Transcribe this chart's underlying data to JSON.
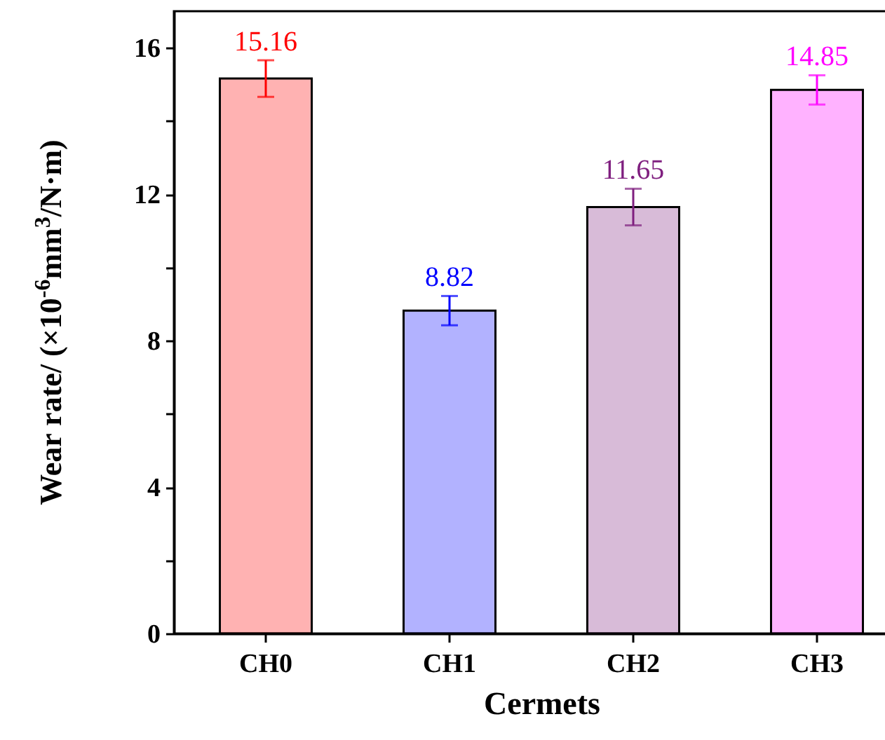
{
  "chart_data": {
    "type": "bar",
    "xlabel": "Cermets",
    "ylabel": "Wear rate/ (×10$^{-6}$mm$^{3}$/N·m)",
    "categories": [
      "CH0",
      "CH1",
      "CH2",
      "CH3"
    ],
    "values": [
      15.16,
      8.82,
      11.65,
      14.85
    ],
    "errors": [
      0.5,
      0.4,
      0.5,
      0.4
    ],
    "colors": [
      "#ff0000",
      "#0000ff",
      "#7f1f7f",
      "#ff00ff"
    ],
    "data_labels": true,
    "ylim": [
      0,
      17
    ],
    "yticks": [
      0,
      {
        "value": 2,
        "label": null
      },
      4,
      {
        "value": 6,
        "label": null
      },
      8,
      {
        "value": 10,
        "label": null
      },
      12,
      {
        "value": 14,
        "label": null
      },
      16
    ],
    "grid": false
  }
}
